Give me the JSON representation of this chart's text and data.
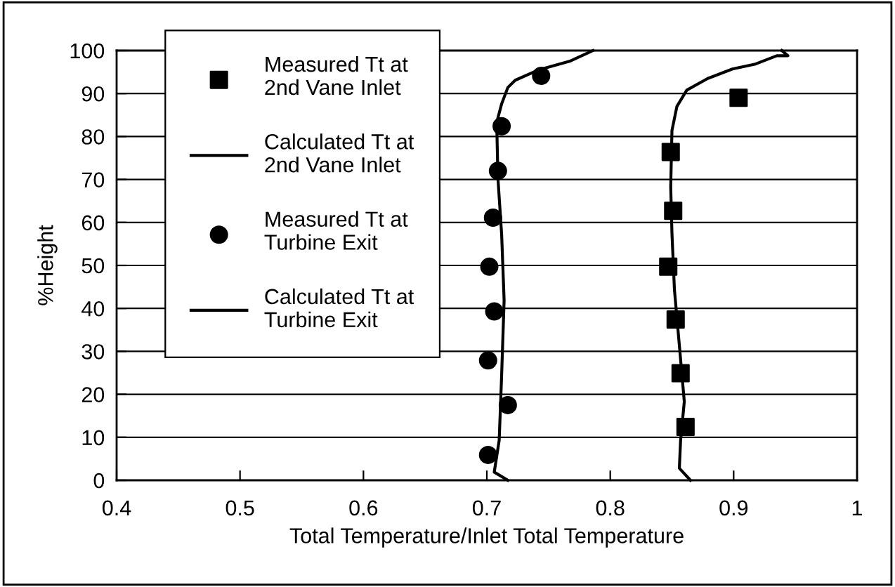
{
  "chart_data": {
    "type": "line",
    "xlabel": "Total Temperature/Inlet Total Temperature",
    "ylabel": "%Height",
    "xlim": [
      0.4,
      1
    ],
    "xticks": [
      0.4,
      0.5,
      0.6,
      0.7,
      0.8,
      0.9,
      1
    ],
    "ylim": [
      0,
      100
    ],
    "yticks": [
      0,
      10,
      20,
      30,
      40,
      50,
      60,
      70,
      80,
      90,
      100
    ],
    "grid": "y",
    "legend": "top left",
    "series": [
      {
        "name": "Measured Tt at 2nd Vane Inlet",
        "type": "scatter",
        "marker": "square",
        "color": "#000000",
        "x": [
          0.904,
          0.849,
          0.851,
          0.847,
          0.853,
          0.857,
          0.861
        ],
        "values": [
          89,
          76.4,
          62.7,
          49.7,
          37.4,
          24.9,
          12.4
        ]
      },
      {
        "name": "Calculated Tt at 2nd Vane Inlet",
        "color": "#000000",
        "x": [
          0.865,
          0.856,
          0.857,
          0.86,
          0.856,
          0.852,
          0.85,
          0.849,
          0.85,
          0.854,
          0.862,
          0.879,
          0.899,
          0.917,
          0.935,
          0.944,
          0.939
        ],
        "values": [
          0,
          2.8,
          9.3,
          18.3,
          31.4,
          44.4,
          57.5,
          68.3,
          81.4,
          87,
          90.8,
          93.5,
          95.7,
          96.8,
          98.8,
          98.8,
          100
        ]
      },
      {
        "name": "Measured Tt at Turbine Exit",
        "type": "scatter",
        "marker": "circle",
        "color": "#000000",
        "x": [
          0.744,
          0.712,
          0.709,
          0.705,
          0.702,
          0.706,
          0.701,
          0.717,
          0.701
        ],
        "values": [
          94.1,
          82.4,
          72,
          61.1,
          49.7,
          39.3,
          27.9,
          17.5,
          5.9
        ]
      },
      {
        "name": "Calculated Tt at Turbine Exit",
        "color": "#000000",
        "x": [
          0.717,
          0.706,
          0.71,
          0.712,
          0.714,
          0.712,
          0.709,
          0.708,
          0.712,
          0.717,
          0.723,
          0.742,
          0.767,
          0.786
        ],
        "values": [
          0,
          1.9,
          9.3,
          24.5,
          41.9,
          57.2,
          70.2,
          83.3,
          87.6,
          91.4,
          93.1,
          95.5,
          97.5,
          100
        ]
      }
    ]
  }
}
